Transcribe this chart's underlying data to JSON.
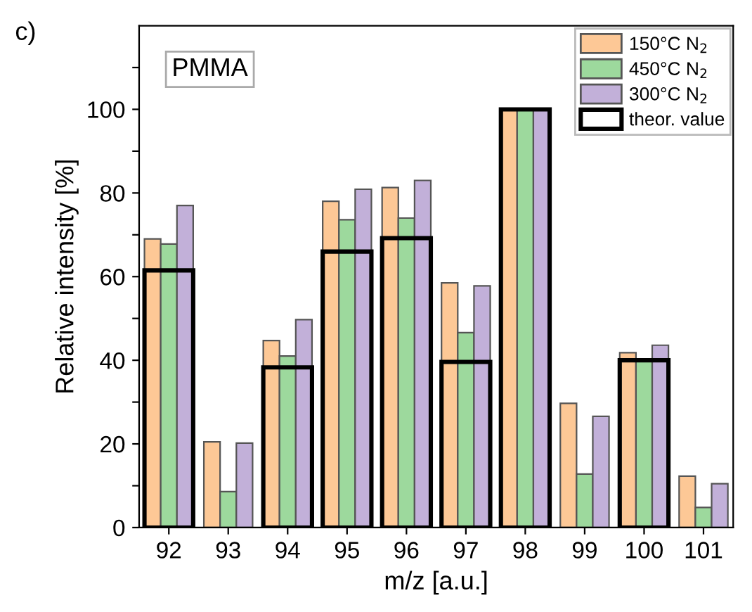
{
  "chart_data": {
    "type": "bar",
    "xlabel": "m/z [a.u.]",
    "ylabel": "Relative intensity [%]",
    "categories": [
      "92",
      "93",
      "94",
      "95",
      "96",
      "97",
      "98",
      "99",
      "100",
      "101"
    ],
    "series": [
      {
        "name": "150°C N$_{2}$",
        "color": "#fdc896",
        "values": [
          69,
          20.5,
          44.7,
          78,
          81.3,
          58.5,
          100,
          29.7,
          41.8,
          12.3
        ]
      },
      {
        "name": "450°C N$_{2}$",
        "color": "#9dd99d",
        "values": [
          67.8,
          8.6,
          41,
          73.6,
          74,
          46.6,
          100,
          12.8,
          40,
          4.8
        ]
      },
      {
        "name": "300°C N$_{2}$",
        "color": "#c2b0d9",
        "values": [
          77,
          20.2,
          49.7,
          80.9,
          83,
          57.8,
          100,
          26.6,
          43.6,
          10.5
        ]
      },
      {
        "name": "theor. value",
        "type": "bar",
        "line_style": "solid",
        "color": "#000000",
        "values": [
          61.5,
          null,
          38.3,
          66,
          69.2,
          39.6,
          100,
          null,
          40,
          null
        ]
      }
    ],
    "ylim": [
      0,
      120
    ],
    "yticks": [
      0,
      {
        "value": 10,
        "label": null
      },
      20,
      {
        "value": 30,
        "label": null
      },
      40,
      {
        "value": 50,
        "label": null
      },
      60,
      {
        "value": 70,
        "label": null
      },
      80,
      {
        "value": 90,
        "label": null
      },
      100,
      {
        "value": 110,
        "label": null
      }
    ],
    "legend": "top right",
    "grid": false,
    "annotations": [
      "c)",
      "PMMA"
    ]
  }
}
